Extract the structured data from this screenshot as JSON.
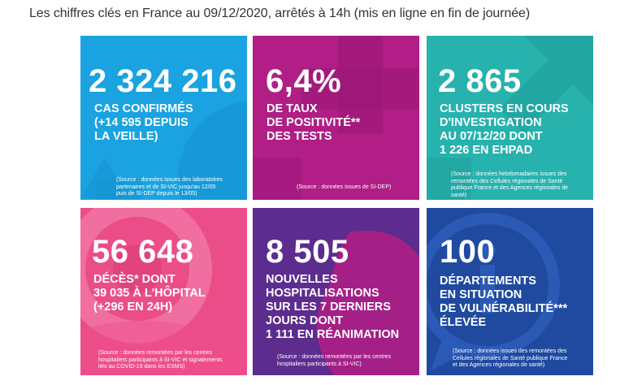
{
  "title": "Les chiffres clés en France au 09/12/2020, arrêtés à 14h (mis en ligne en fin de journée)",
  "colors": {
    "cas": "#1aa3e0",
    "positivite": "#b01e86",
    "clusters": "#27b2ae",
    "deces": "#ea4d87",
    "hospitalisations": "#5c2c8e",
    "departements": "#1f4aa0"
  },
  "tiles": {
    "cas": {
      "number": "2 324 216",
      "label": [
        "CAS CONFIRMÉS",
        "(+14 595 DEPUIS",
        "LA VEILLE)"
      ],
      "source": [
        "(Source : données issues des laboratoires",
        "partenaires et de SI-VIC jusqu'au 12/05",
        "puis de SI-DEP depuis le 13/05)"
      ],
      "icon": "virus-icon"
    },
    "positivite": {
      "number": "6,4%",
      "label": [
        "DE TAUX",
        "DE POSITIVITÉ**",
        "DES TESTS"
      ],
      "source": [
        "(Source : données issues de SI-DEP)"
      ],
      "icon": "plus-shape-icon"
    },
    "clusters": {
      "number": "2 865",
      "label": [
        "CLUSTERS EN COURS",
        "D'INVESTIGATION",
        "AU 07/12/20 DONT",
        "1 226 EN EHPAD"
      ],
      "source": [
        "(Source : données hebdomadaires issues des",
        "remontées des Cellules régionales de Santé",
        "publique France et des Agences régionales de",
        "santé)"
      ],
      "icon": "arrow-icon"
    },
    "deces": {
      "number": "56 648",
      "label": [
        "DÉCÈS* DONT",
        "39 035 À L'HÔPITAL",
        "(+296 EN 24H)"
      ],
      "source": [
        "(Source : données remontées par les centres",
        "hospitaliers participants à SI-VIC et signalements",
        "liés au COVID-19 dans les ESMS)"
      ],
      "icon": "ring-icon"
    },
    "hospitalisations": {
      "number": "8 505",
      "label": [
        "NOUVELLES",
        "HOSPITALISATIONS",
        "SUR LES 7 DERNIERS",
        "JOURS DONT",
        "1 111 EN RÉANIMATION"
      ],
      "source": [
        "(Source : données remontées par les centres",
        "hospitaliers participants à SI-VIC)"
      ],
      "icon": "blob-icon"
    },
    "departements": {
      "number": "100",
      "label": [
        "DÉPARTEMENTS",
        "EN SITUATION",
        "DE VULNÉRABILITÉ***",
        "ÉLEVÉE"
      ],
      "source": [
        "(Source : données issues des remontées des",
        "Cellules régionales de Santé publique France",
        "et des Agences régionales de santé)"
      ],
      "icon": "info-bubble-icon"
    }
  }
}
